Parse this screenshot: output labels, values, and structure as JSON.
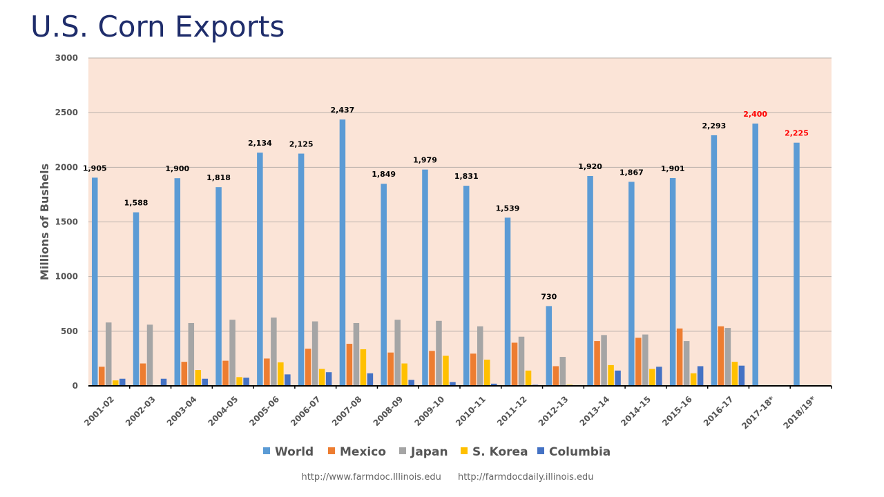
{
  "slide": {
    "title": "U.S. Corn Exports"
  },
  "chart_data": {
    "type": "bar",
    "title": "U.S. Corn Exports",
    "xlabel": "",
    "ylabel": "Millions of Bushels",
    "ylim": [
      0,
      3000
    ],
    "yticks": [
      0,
      500,
      1000,
      1500,
      2000,
      2500,
      3000
    ],
    "ytick_labels": [
      "0",
      "500",
      "1000",
      "1500",
      "2000",
      "2500",
      "3000"
    ],
    "grid": true,
    "legend_position": "bottom",
    "categories": [
      "2001-02",
      "2002-03",
      "2003-04",
      "2004-05",
      "2005-06",
      "2006-07",
      "2007-08",
      "2008-09",
      "2009-10",
      "2010-11",
      "2011-12",
      "2012-13",
      "2013-14",
      "2014-15",
      "2015-16",
      "2016-17",
      "2017-18*",
      "2018/19*"
    ],
    "series": [
      {
        "name": "World",
        "color": "#5b9bd5",
        "values": [
          1905,
          1588,
          1900,
          1818,
          2134,
          2125,
          2437,
          1849,
          1979,
          1831,
          1539,
          730,
          1920,
          1867,
          1901,
          2293,
          2400,
          2225
        ]
      },
      {
        "name": "Mexico",
        "color": "#ed7d31",
        "values": [
          175,
          205,
          220,
          230,
          250,
          340,
          385,
          305,
          320,
          295,
          395,
          180,
          410,
          440,
          525,
          545,
          0,
          0
        ]
      },
      {
        "name": "Japan",
        "color": "#a5a5a5",
        "values": [
          580,
          560,
          575,
          605,
          625,
          590,
          575,
          605,
          595,
          545,
          450,
          265,
          465,
          470,
          410,
          530,
          0,
          0
        ]
      },
      {
        "name": "S. Korea",
        "color": "#ffc000",
        "values": [
          50,
          0,
          145,
          80,
          215,
          155,
          335,
          205,
          275,
          240,
          140,
          10,
          190,
          155,
          115,
          220,
          0,
          0
        ]
      },
      {
        "name": "Columbia",
        "color": "#4472c4",
        "values": [
          65,
          65,
          65,
          75,
          105,
          125,
          115,
          55,
          35,
          20,
          10,
          0,
          140,
          175,
          180,
          185,
          0,
          0
        ]
      }
    ],
    "world_labels": [
      "1,905",
      "1,588",
      "1,900",
      "1,818",
      "2,134",
      "2,125",
      "2,437",
      "1,849",
      "1,979",
      "1,831",
      "1,539",
      "730",
      "1,920",
      "1,867",
      "1,901",
      "2,293",
      "2,400",
      "2,225"
    ],
    "projected_label_color": "#ff0000",
    "normal_label_color": "#000000",
    "projected_indices": [
      16,
      17
    ]
  },
  "source": {
    "url1": "http://www.farmdoc.Illinois.edu",
    "url2": "http://farmdocdaily.illinois.edu"
  }
}
